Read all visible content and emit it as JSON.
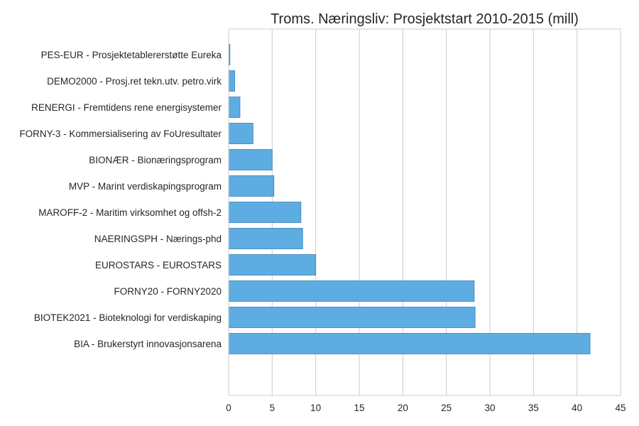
{
  "chart_data": {
    "type": "bar",
    "orientation": "horizontal",
    "title": "Troms. Næringsliv: Prosjektstart 2010-2015 (mill)",
    "xlabel": "",
    "ylabel": "",
    "xlim": [
      0,
      45
    ],
    "xticks": [
      0,
      5,
      10,
      15,
      20,
      25,
      30,
      35,
      40,
      45
    ],
    "grid": true,
    "bar_color": "#5dade2",
    "categories": [
      "BIA - Brukerstyrt innovasjonsarena",
      "BIOTEK2021 - Bioteknologi for verdiskaping",
      "FORNY20 - FORNY2020",
      "EUROSTARS - EUROSTARS",
      "NAERINGSPH - Nærings-phd",
      "MAROFF-2 - Maritim virksomhet og offsh-2",
      "MVP - Marint verdiskapingsprogram",
      "BIONÆR - Bionæringsprogram",
      "FORNY-3 - Kommersialisering av FoUresultater",
      "RENERGI - Fremtidens rene energisystemer",
      "DEMO2000 - Prosj.ret tekn.utv. petro.virk",
      "PES-EUR - Prosjektetablererstøtte Eureka"
    ],
    "values": [
      41.5,
      28.3,
      28.2,
      10.0,
      8.5,
      8.3,
      5.2,
      5.0,
      2.8,
      1.3,
      0.7,
      0.15
    ]
  }
}
